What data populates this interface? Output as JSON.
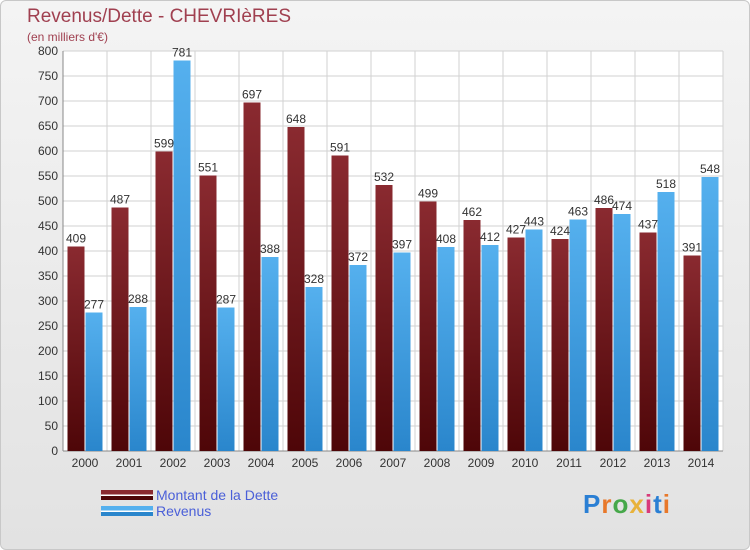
{
  "chart_data": {
    "type": "bar",
    "title": "Revenus/Dette - CHEVRIèRES",
    "subtitle": "(en milliers d'€)",
    "categories": [
      "2000",
      "2001",
      "2002",
      "2003",
      "2004",
      "2005",
      "2006",
      "2007",
      "2008",
      "2009",
      "2010",
      "2011",
      "2012",
      "2013",
      "2014"
    ],
    "series": [
      {
        "name": "Montant de la Dette",
        "values": [
          409,
          487,
          599,
          551,
          697,
          648,
          591,
          532,
          499,
          462,
          427,
          424,
          486,
          437,
          391
        ],
        "color": "#7a1f25"
      },
      {
        "name": "Revenus",
        "values": [
          277,
          288,
          781,
          287,
          388,
          328,
          372,
          397,
          408,
          412,
          443,
          463,
          474,
          518,
          548
        ],
        "color": "#4aa3e6"
      }
    ],
    "data_labels": [
      [
        "409",
        "487",
        "599",
        "551",
        "697",
        "648",
        "591",
        "532",
        "499",
        "462",
        "427",
        "424",
        "486",
        "437",
        "391"
      ],
      [
        "277",
        "288",
        "781",
        "287",
        "388",
        "328",
        "372",
        "397",
        "408",
        "412",
        "443",
        "463",
        "474",
        "518",
        "548"
      ]
    ],
    "ylim": [
      0,
      800
    ],
    "yticks": [
      "0",
      "50",
      "100",
      "150",
      "200",
      "250",
      "300",
      "350",
      "400",
      "450",
      "500",
      "550",
      "600",
      "650",
      "700",
      "750",
      "800"
    ],
    "grid": true,
    "legend_position": "bottom-left"
  },
  "branding": {
    "logo": "Proxiti",
    "letter_colors": [
      "#2a7fd4",
      "#e8782a",
      "#46a84a",
      "#e8b23a",
      "#d83a7a",
      "#2a7fd4",
      "#e8782a"
    ]
  },
  "colors": {
    "title": "#a04050",
    "legend_text": "#4a5fd8"
  }
}
